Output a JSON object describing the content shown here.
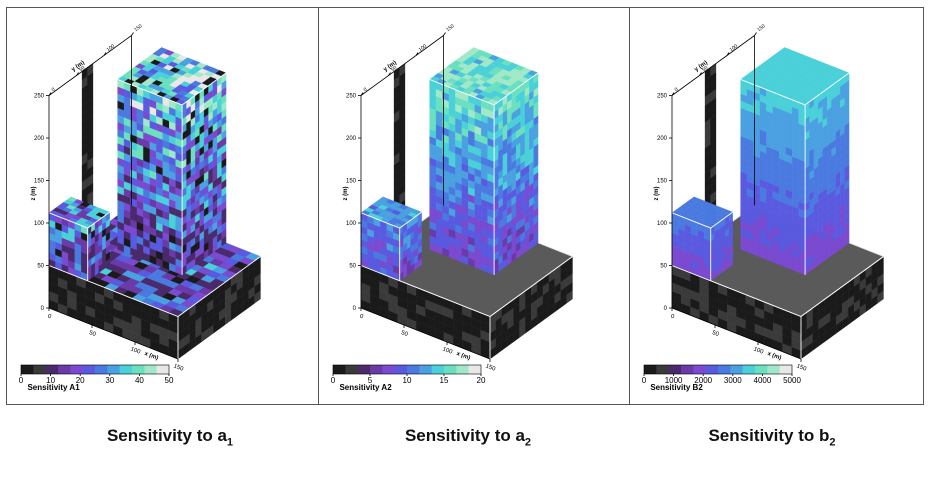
{
  "panels": [
    {
      "id": "a1",
      "colorbar_title": "Sensitivity A1",
      "colorbar_ticks": [
        "0",
        "10",
        "20",
        "30",
        "40",
        "50"
      ],
      "z_ticks": [
        "0",
        "50",
        "100",
        "150",
        "200",
        "250"
      ],
      "y_ticks": [
        "0",
        "50",
        "100",
        "150"
      ],
      "x_ticks": [
        "0",
        "50",
        "100",
        "150"
      ],
      "z_label": "z (m)",
      "y_label": "y (m)",
      "x_label": "x (m)",
      "caption_main": "Sensitivity to a",
      "caption_sub": "1"
    },
    {
      "id": "a2",
      "colorbar_title": "Sensitivity A2",
      "colorbar_ticks": [
        "0",
        "5",
        "10",
        "15",
        "20"
      ],
      "z_ticks": [
        "0",
        "50",
        "100",
        "150",
        "200",
        "250"
      ],
      "y_ticks": [
        "0",
        "50",
        "100",
        "150"
      ],
      "x_ticks": [
        "0",
        "50",
        "100",
        "150"
      ],
      "z_label": "z (m)",
      "y_label": "y (m)",
      "x_label": "x (m)",
      "caption_main": "Sensitivity to a",
      "caption_sub": "2"
    },
    {
      "id": "b2",
      "colorbar_title": "Sensitivity B2",
      "colorbar_ticks": [
        "0",
        "1000",
        "2000",
        "3000",
        "4000",
        "5000"
      ],
      "z_ticks": [
        "0",
        "50",
        "100",
        "150",
        "200",
        "250"
      ],
      "y_ticks": [
        "0",
        "50",
        "100",
        "150"
      ],
      "x_ticks": [
        "0",
        "50",
        "100",
        "150"
      ],
      "z_label": "z (m)",
      "y_label": "y (m)",
      "x_label": "x (m)",
      "caption_main": "Sensitivity to b",
      "caption_sub": "2"
    }
  ],
  "colormap": [
    "#1a1a1a",
    "#3a3a3a",
    "#4a2a6a",
    "#6a3aa8",
    "#7a4ad0",
    "#5a5ae0",
    "#4a7ae0",
    "#4aa0e0",
    "#4ad0d8",
    "#6ae0c0",
    "#a0e8c8",
    "#e8e8e8"
  ]
}
